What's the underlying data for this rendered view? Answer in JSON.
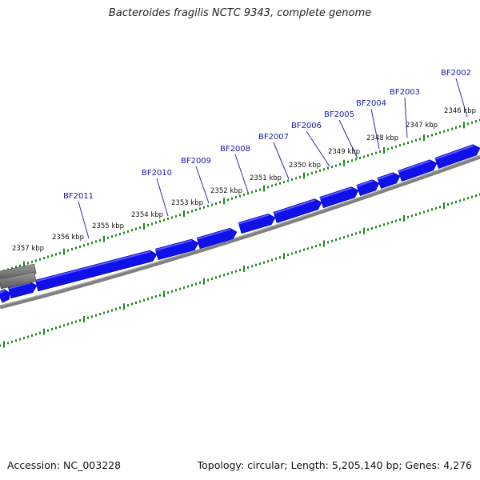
{
  "title": "Bacteroides fragilis NCTC 9343, complete genome",
  "footer": {
    "accession": "Accession: NC_003228",
    "summary": "Topology: circular; Length: 5,205,140 bp; Genes: 4,276"
  },
  "colors": {
    "gene_fill": "#1010e8",
    "gene_top": "#5a5aff",
    "gene_label": "#1a1aa8",
    "gene_grey": "#666666",
    "backbone": "#808080",
    "tick": "#1a8a1a",
    "label_line": "#2a2ab0"
  },
  "kbp_labels": [
    "2346 kbp",
    "2347 kbp",
    "2348 kbp",
    "2349 kbp",
    "2350 kbp",
    "2351 kbp",
    "2352 kbp",
    "2353 kbp",
    "2354 kbp",
    "2355 kbp",
    "2356 kbp",
    "2357 kbp"
  ],
  "gene_labels": [
    "BF2002",
    "BF2003",
    "BF2004",
    "BF2005",
    "BF2006",
    "BF2007",
    "BF2008",
    "BF2009",
    "BF2010",
    "BF2011"
  ]
}
